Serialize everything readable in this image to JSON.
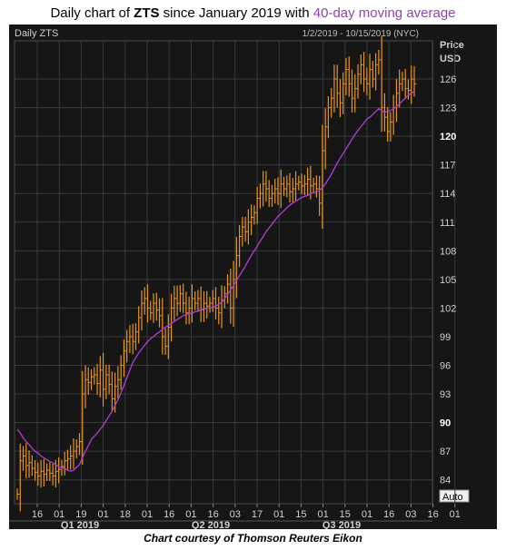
{
  "header": {
    "prefix": "Daily chart of ",
    "ticker": "ZTS",
    "middle": " since January 2019 with ",
    "ma_label": "40-day moving average"
  },
  "chart_header": {
    "name": "Daily ZTS",
    "range": "1/2/2019 - 10/15/2019 (NYC)",
    "price_label": "Price",
    "currency": "USD",
    "scale_button": "Auto"
  },
  "caption": "Chart courtesy of Thomson Reuters Eikon",
  "colors": {
    "background": "#161616",
    "grid": "#3a3a3a",
    "price": "#e8951e",
    "moving_average": "#b43cd8",
    "text": "#d0d0d0"
  },
  "chart_data": {
    "type": "line",
    "ylim": [
      81.5,
      130
    ],
    "y_ticks": [
      84,
      87,
      90,
      93,
      96,
      99,
      102,
      105,
      108,
      111,
      114,
      117,
      120,
      123,
      126
    ],
    "highlighted_ticks": [
      90,
      120
    ],
    "x_day_labels": [
      "16",
      "01",
      "19",
      "01",
      "18",
      "01",
      "16",
      "01",
      "16",
      "03",
      "17",
      "01",
      "15",
      "01",
      "15",
      "01",
      "16",
      "03",
      "16",
      "01"
    ],
    "quarters": [
      "Q1 2019",
      "Q2 2019",
      "Q3 2019"
    ],
    "series": [
      {
        "name": "ZTS",
        "style": "ohlc",
        "values": [
          82.5,
          86.0,
          86.5,
          85.5,
          85.8,
          85.2,
          84.8,
          84.4,
          84.9,
          84.6,
          85.0,
          84.7,
          84.4,
          84.9,
          85.1,
          85.4,
          86.0,
          86.2,
          86.5,
          87.0,
          87.5,
          88.0,
          93.0,
          94.5,
          94.2,
          94.8,
          95.0,
          94.1,
          95.5,
          93.5,
          95.0,
          94.0,
          92.5,
          93.8,
          94.5,
          96.0,
          97.5,
          98.5,
          99.0,
          98.5,
          99.5,
          101.0,
          102.5,
          103.0,
          102.0,
          101.5,
          102.5,
          101.8,
          101.2,
          99.0,
          98.0,
          100.0,
          102.0,
          103.0,
          102.5,
          103.5,
          102.5,
          101.5,
          102.0,
          103.0,
          102.5,
          103.0,
          101.8,
          102.5,
          102.2,
          102.5,
          103.0,
          102.0,
          101.5,
          102.8,
          103.5,
          104.5,
          102.0,
          105.0,
          107.5,
          109.5,
          110.5,
          110.0,
          111.0,
          111.5,
          112.0,
          113.5,
          114.0,
          115.0,
          114.5,
          113.5,
          114.0,
          114.5,
          114.0,
          115.0,
          114.5,
          115.0,
          114.2,
          114.5,
          115.0,
          115.2,
          114.8,
          115.0,
          115.5,
          114.8,
          115.0,
          114.5,
          113.0,
          118.5,
          121.0,
          123.0,
          124.0,
          126.0,
          124.5,
          123.5,
          125.5,
          127.0,
          125.5,
          124.0,
          125.0,
          126.5,
          127.5,
          126.0,
          125.5,
          127.0,
          126.0,
          127.5,
          128.0,
          123.0,
          122.0,
          120.5,
          121.5,
          123.0,
          124.5,
          125.5,
          126.0,
          125.0,
          124.8,
          126.0,
          125.5
        ]
      },
      {
        "name": "40-day moving average",
        "style": "line",
        "values": [
          89.3,
          88.9,
          88.4,
          88.0,
          87.7,
          87.3,
          87.0,
          86.8,
          86.5,
          86.3,
          86.1,
          85.9,
          85.8,
          85.6,
          85.4,
          85.3,
          85.2,
          85.0,
          84.9,
          85.0,
          85.3,
          85.6,
          86.3,
          87.0,
          87.6,
          88.2,
          88.6,
          88.9,
          89.3,
          89.7,
          90.2,
          90.7,
          91.2,
          91.8,
          92.4,
          93.1,
          93.9,
          94.7,
          95.5,
          96.3,
          96.8,
          97.3,
          97.7,
          98.1,
          98.5,
          98.8,
          99.0,
          99.3,
          99.5,
          99.8,
          100.0,
          100.2,
          100.4,
          100.6,
          100.8,
          101.0,
          101.2,
          101.3,
          101.4,
          101.5,
          101.6,
          101.7,
          101.8,
          101.9,
          102.0,
          102.0,
          102.1,
          102.2,
          102.4,
          102.6,
          103.0,
          103.4,
          103.9,
          104.4,
          104.9,
          105.4,
          105.9,
          106.4,
          107.0,
          107.5,
          108.0,
          108.5,
          109.0,
          109.5,
          110.0,
          110.4,
          110.8,
          111.2,
          111.6,
          111.9,
          112.2,
          112.5,
          112.8,
          113.0,
          113.2,
          113.4,
          113.6,
          113.7,
          113.8,
          114.0,
          114.1,
          114.2,
          114.3,
          114.6,
          115.0,
          115.5,
          116.0,
          116.6,
          117.2,
          117.7,
          118.2,
          118.7,
          119.2,
          119.7,
          120.2,
          120.6,
          121.0,
          121.4,
          121.8,
          122.0,
          122.3,
          122.6,
          122.9,
          122.7,
          122.5,
          122.6,
          122.7,
          122.9,
          123.1,
          123.4,
          123.7,
          124.0,
          124.3,
          124.5,
          124.7
        ]
      }
    ]
  }
}
